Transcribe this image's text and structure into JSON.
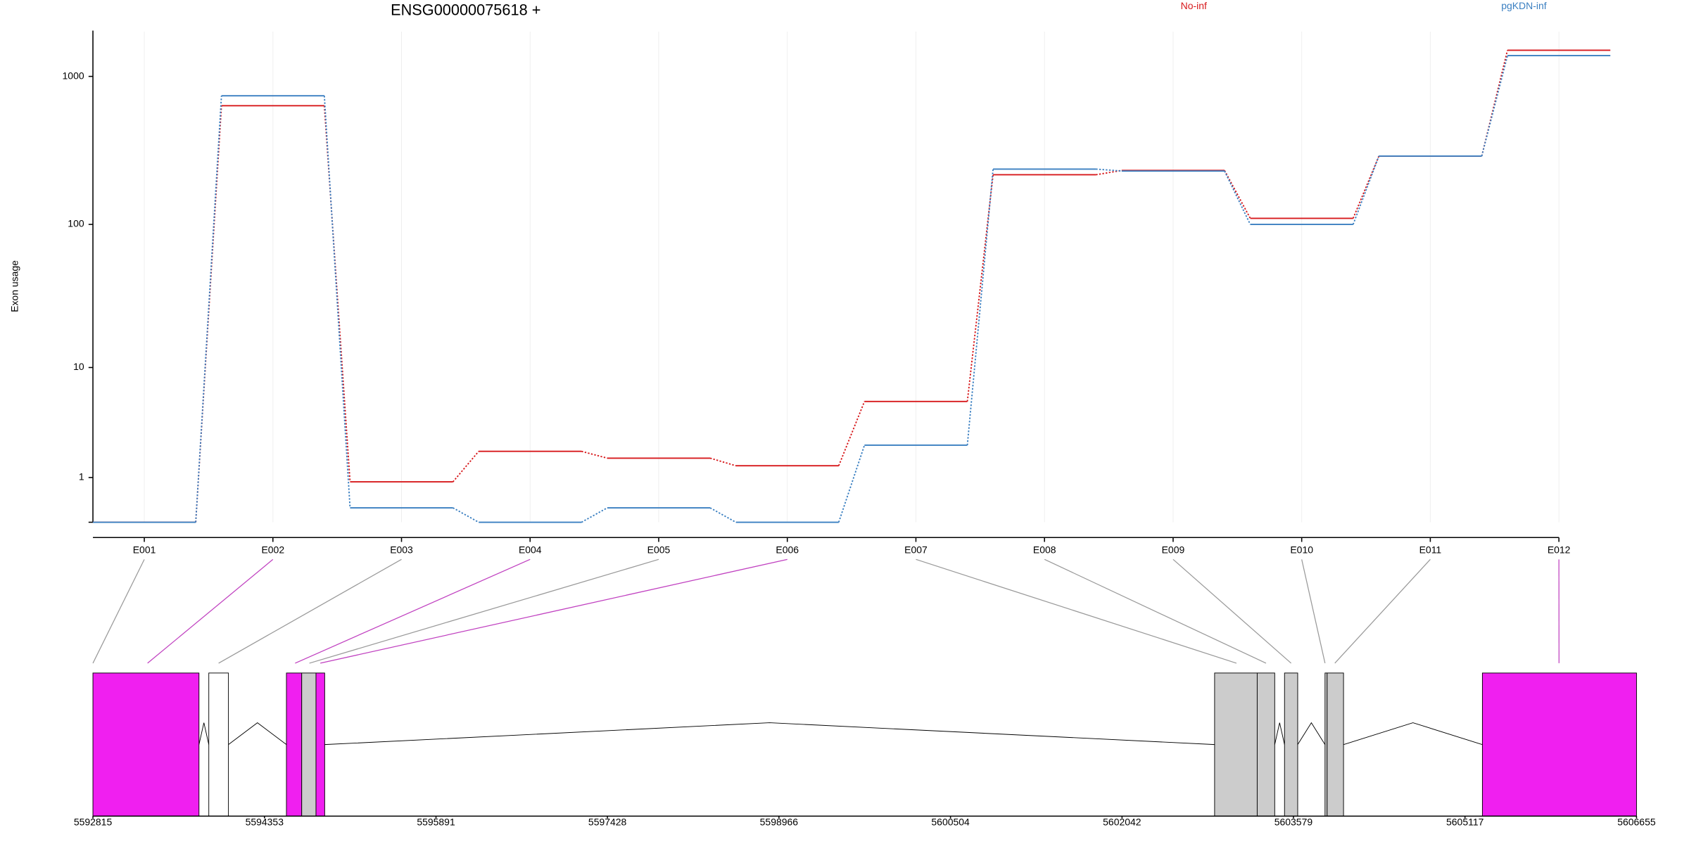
{
  "chart_data": {
    "type": "line",
    "title": "ENSG00000075618 +",
    "y_label": "Exon usage",
    "yscale": "log10(v+1)",
    "ylim": [
      0,
      2000
    ],
    "yticks": [
      1,
      10,
      100,
      1000
    ],
    "grid": true,
    "legend": "top",
    "categories": [
      "E001",
      "E002",
      "E003",
      "E004",
      "E005",
      "E006",
      "E007",
      "E008",
      "E009",
      "E010",
      "E011",
      "E012"
    ],
    "series": [
      {
        "name": "No-inf",
        "color": "#d7191c",
        "values": [
          0,
          634,
          0.87,
          2.0,
          1.7,
          1.4,
          5.5,
          217,
          232,
          110,
          290,
          1500
        ]
      },
      {
        "name": "pgKDN-inf",
        "color": "#3a7fc1",
        "values": [
          0,
          740,
          0.25,
          0,
          0.25,
          0,
          2.3,
          237,
          230,
          100,
          290,
          1380
        ]
      }
    ],
    "exon_locations": [
      5592815,
      5593305,
      5593942,
      5594628,
      5594756,
      5594854,
      5603068,
      5603333,
      5603558,
      5603862,
      5603950,
      5605960
    ],
    "exon_colors": [
      "#999999",
      "#c040c0",
      "#999999",
      "#c040c0",
      "#999999",
      "#c040c0",
      "#999999",
      "#999999",
      "#999999",
      "#999999",
      "#999999",
      "#c040c0"
    ],
    "gene_model": {
      "xlim": [
        5592815,
        5606655
      ],
      "xticks": [
        5592815,
        5594353,
        5595891,
        5597428,
        5598966,
        5600504,
        5602042,
        5603579,
        5605117,
        5606655
      ],
      "regions": [
        {
          "start": 5592815,
          "end": 5593766,
          "color": "#f01ff0"
        },
        {
          "start": 5593854,
          "end": 5594030,
          "color": "#ffffff"
        },
        {
          "start": 5594550,
          "end": 5594687,
          "color": "#f01ff0"
        },
        {
          "start": 5594687,
          "end": 5594815,
          "color": "#cccccc"
        },
        {
          "start": 5594815,
          "end": 5594893,
          "color": "#f01ff0"
        },
        {
          "start": 5602872,
          "end": 5603254,
          "color": "#cccccc"
        },
        {
          "start": 5603254,
          "end": 5603411,
          "color": "#cccccc"
        },
        {
          "start": 5603499,
          "end": 5603617,
          "color": "#cccccc"
        },
        {
          "start": 5603862,
          "end": 5603881,
          "color": "#cccccc"
        },
        {
          "start": 5603881,
          "end": 5604028,
          "color": "#cccccc"
        },
        {
          "start": 5605273,
          "end": 5606655,
          "color": "#f01ff0"
        }
      ]
    }
  }
}
